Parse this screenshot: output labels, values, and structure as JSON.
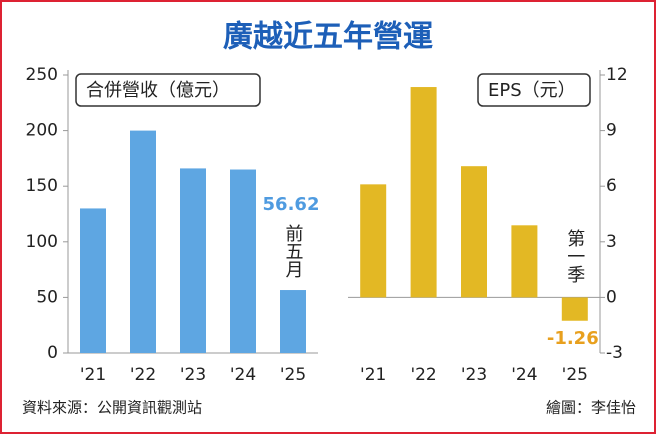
{
  "title": "廣越近五年營運",
  "source": "資料來源：公開資訊觀測站",
  "credit": "繪圖：李佳怡",
  "chart_data": [
    {
      "type": "bar",
      "title": "合併營收（億元）",
      "categories": [
        "'21",
        "'22",
        "'23",
        "'24",
        "'25"
      ],
      "values": [
        130,
        200,
        166,
        165,
        56.62
      ],
      "color": "#5ea6e2",
      "label_color": "#4f9be0",
      "ylim": [
        0,
        250
      ],
      "yticks": [
        0,
        50,
        100,
        150,
        200,
        250
      ],
      "annotation": "前五月"
    },
    {
      "type": "bar",
      "title": "EPS（元）",
      "categories": [
        "'21",
        "'22",
        "'23",
        "'24",
        "'25"
      ],
      "values": [
        6.1,
        11.35,
        7.08,
        3.89,
        -1.26
      ],
      "color": "#e3b824",
      "label_color": "#e8a01e",
      "ylim": [
        -3,
        12
      ],
      "yticks": [
        -3,
        0,
        3,
        6,
        9,
        12
      ],
      "annotation": "第一季"
    }
  ]
}
